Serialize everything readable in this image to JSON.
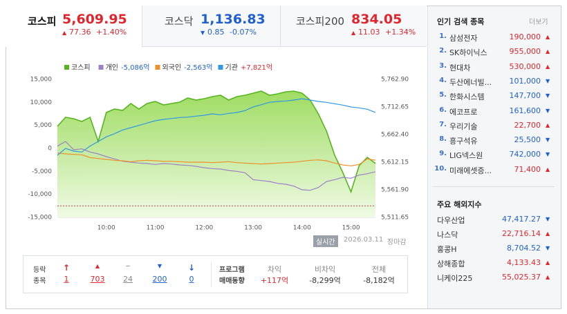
{
  "indices": [
    {
      "name": "코스피",
      "value": "5,609.95",
      "change": "77.36",
      "rate": "+1.40%",
      "direction": "up"
    },
    {
      "name": "코스닥",
      "value": "1,136.83",
      "change": "0.85",
      "rate": "-0.07%",
      "direction": "down"
    },
    {
      "name": "코스피200",
      "value": "834.05",
      "change": "11.03",
      "rate": "+1.34%",
      "direction": "up"
    }
  ],
  "chart_data": {
    "type": "line",
    "x": [
      "09:00",
      "09:10",
      "09:20",
      "09:30",
      "09:40",
      "09:50",
      "10:00",
      "10:10",
      "10:20",
      "10:30",
      "10:40",
      "10:50",
      "11:00",
      "11:10",
      "11:20",
      "11:30",
      "11:40",
      "11:50",
      "12:00",
      "12:10",
      "12:20",
      "12:30",
      "12:40",
      "12:50",
      "13:00",
      "13:10",
      "13:20",
      "13:30",
      "13:40",
      "13:50",
      "14:00",
      "14:10",
      "14:20",
      "14:30",
      "14:40",
      "14:50",
      "15:00",
      "15:10",
      "15:20",
      "15:30"
    ],
    "xlim": [
      "09:00",
      "15:30"
    ],
    "xticks": [
      "10:00",
      "11:00",
      "12:00",
      "13:00",
      "14:00",
      "15:00"
    ],
    "ylim": [
      -15000,
      15000
    ],
    "yticks": [
      {
        "value": 15000,
        "label": "15,000"
      },
      {
        "value": 10000,
        "label": "10,000"
      },
      {
        "value": 5000,
        "label": "5,000"
      },
      0,
      {
        "value": -5000,
        "label": "-5,000"
      },
      {
        "value": -10000,
        "label": "-10,000"
      },
      {
        "value": -15000,
        "label": "-15,000"
      }
    ],
    "y2lim": [
      5511.65,
      5762.9
    ],
    "y2ticks": [
      {
        "value": 5762.9,
        "label": "5,762.90"
      },
      {
        "value": 5712.65,
        "label": "5,712.65"
      },
      {
        "value": 5662.4,
        "label": "5,662.40"
      },
      {
        "value": 5612.15,
        "label": "5,612.15"
      },
      {
        "value": 5561.9,
        "label": "5,561.90"
      },
      {
        "value": 5511.65,
        "label": "5,511.65"
      }
    ],
    "grid": false,
    "reference_line": {
      "value": 5532.59,
      "axis": "y2",
      "color": "#e0403a",
      "dashed": true
    },
    "series": [
      {
        "name": "코스피",
        "color": "#56b51e",
        "axis": "y2",
        "area": true,
        "values": [
          5677.48,
          5693.81,
          5691.29,
          5686.27,
          5693.81,
          5649.84,
          5702.6,
          5708.88,
          5706.37,
          5718.93,
          5708.88,
          5718.93,
          5722.7,
          5716.42,
          5718.93,
          5721.44,
          5728.98,
          5725.21,
          5727.73,
          5731.49,
          5734.01,
          5725.21,
          5731.49,
          5734.01,
          5737.78,
          5741.54,
          5734.01,
          5736.52,
          5740.29,
          5741.54,
          5737.78,
          5725.21,
          5700.09,
          5668.68,
          5624.71,
          5593.31,
          5558.13,
          5605.87,
          5620.94,
          5609.95
        ]
      },
      {
        "name": "개인",
        "total_label": "-5,086억",
        "color": "#9a80c8",
        "values": [
          500,
          1500,
          -300,
          -100,
          -800,
          -1200,
          -1800,
          -2300,
          -2800,
          -3000,
          -3200,
          -3300,
          -3500,
          -3300,
          -3400,
          -3600,
          -3700,
          -3900,
          -4200,
          -4400,
          -4500,
          -4800,
          -5000,
          -5300,
          -6800,
          -7000,
          -7200,
          -7600,
          -7800,
          -8200,
          -9000,
          -9100,
          -8500,
          -7200,
          -6800,
          -6300,
          -6500,
          -5800,
          -5500,
          -5086
        ]
      },
      {
        "name": "외국인",
        "total_label": "-2,563억",
        "color": "#ef8f2b",
        "values": [
          -1000,
          -1200,
          -1300,
          -1400,
          -2000,
          -2200,
          -2400,
          -2600,
          -2700,
          -2900,
          -2700,
          -2600,
          -2700,
          -2800,
          -2800,
          -2900,
          -3000,
          -3000,
          -3000,
          -3100,
          -3000,
          -2900,
          -3100,
          -3200,
          -3300,
          -3400,
          -3300,
          -3200,
          -3100,
          -3000,
          -2800,
          -2600,
          -2500,
          -2700,
          -3200,
          -3600,
          -3800,
          -3500,
          -2300,
          -2563
        ]
      },
      {
        "name": "기관",
        "total_label": "+7,821억",
        "color": "#2f97e3",
        "values": [
          -1500,
          0,
          -600,
          -800,
          500,
          1500,
          2500,
          3200,
          4000,
          4500,
          5000,
          5500,
          6000,
          6300,
          6500,
          6700,
          6800,
          7000,
          7200,
          7500,
          7300,
          7600,
          7800,
          8200,
          9000,
          9500,
          10000,
          10200,
          10300,
          10500,
          10800,
          10500,
          10200,
          10000,
          9700,
          9400,
          9000,
          8800,
          8500,
          7821
        ]
      }
    ]
  },
  "status": {
    "badge": "실시간",
    "date": "2026.03.11",
    "note": "장마감"
  },
  "breadth": {
    "label": [
      "등락",
      "종목"
    ],
    "items": [
      {
        "kind": "upper_limit",
        "value": "1"
      },
      {
        "kind": "up",
        "value": "703"
      },
      {
        "kind": "flat",
        "value": "24"
      },
      {
        "kind": "down",
        "value": "200"
      },
      {
        "kind": "lower_limit",
        "value": "0"
      }
    ]
  },
  "program": {
    "label": [
      "프로그램",
      "매매동향"
    ],
    "columns": [
      {
        "header": "차익",
        "value": "+117억"
      },
      {
        "header": "비차익",
        "value": "-8,299억"
      },
      {
        "header": "전체",
        "value": "-8,182억"
      }
    ]
  },
  "popular": {
    "title": "인기 검색 종목",
    "more": "더보기",
    "items": [
      {
        "rank": "1.",
        "name": "삼성전자",
        "price": "190,000",
        "direction": "up"
      },
      {
        "rank": "2.",
        "name": "SK하이닉스",
        "price": "955,000",
        "direction": "up"
      },
      {
        "rank": "3.",
        "name": "현대차",
        "price": "530,000",
        "direction": "up"
      },
      {
        "rank": "4.",
        "name": "두산에너빌...",
        "price": "101,000",
        "direction": "down"
      },
      {
        "rank": "5.",
        "name": "한화시스템",
        "price": "147,700",
        "direction": "down"
      },
      {
        "rank": "6.",
        "name": "에코프로",
        "price": "161,600",
        "direction": "down"
      },
      {
        "rank": "7.",
        "name": "우리기술",
        "price": "22,700",
        "direction": "up"
      },
      {
        "rank": "8.",
        "name": "흥구석유",
        "price": "25,500",
        "direction": "down"
      },
      {
        "rank": "9.",
        "name": "LIG넥스원",
        "price": "742,000",
        "direction": "down"
      },
      {
        "rank": "10.",
        "name": "미래에셋증...",
        "price": "71,400",
        "direction": "up"
      }
    ]
  },
  "overseas": {
    "title": "주요 해외지수",
    "items": [
      {
        "name": "다우산업",
        "value": "47,417.27",
        "direction": "down"
      },
      {
        "name": "나스닥",
        "value": "22,716.14",
        "direction": "up"
      },
      {
        "name": "홍콩H",
        "value": "8,704.52",
        "direction": "down"
      },
      {
        "name": "상해종합",
        "value": "4,133.43",
        "direction": "up"
      },
      {
        "name": "니케이225",
        "value": "55,025.37",
        "direction": "up"
      }
    ]
  }
}
